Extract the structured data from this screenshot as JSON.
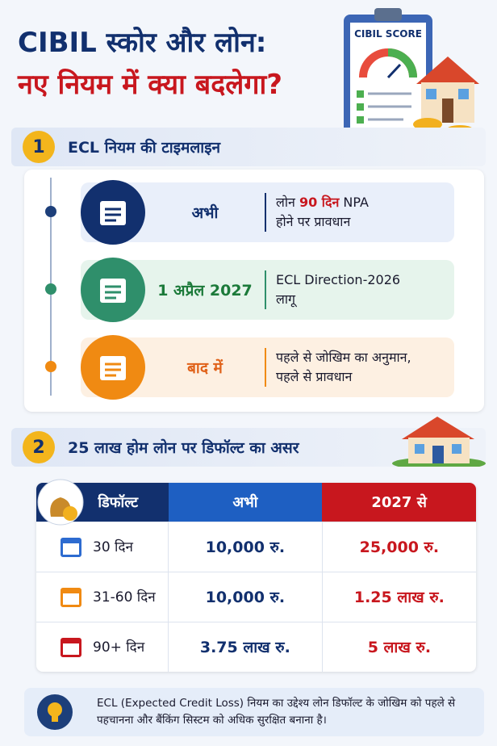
{
  "header": {
    "title_line1": "CIBIL स्कोर और लोन:",
    "title_line2": "नए नियम में क्या बदलेगा?",
    "badge": "CIBIL SCORE"
  },
  "section1": {
    "number": "1",
    "title": "ECL नियम की टाइमलाइन",
    "items": [
      {
        "label": "अभी",
        "lines": [
          [
            "लोन ",
            "90 दिन",
            " NPA"
          ],
          [
            "होने पर प्रावधान"
          ]
        ]
      },
      {
        "label": "1 अप्रैल 2027",
        "lines": [
          [
            "ECL Direction-2026"
          ],
          [
            "लागू"
          ]
        ]
      },
      {
        "label": "बाद में",
        "lines": [
          [
            "पहले से जोखिम का अनुमान,"
          ],
          [
            "पहले से प्रावधान"
          ]
        ]
      }
    ]
  },
  "section2": {
    "number": "2",
    "title": "25 लाख होम लोन पर डिफॉल्ट का असर",
    "table": {
      "columns": [
        "डिफॉल्ट",
        "अभी",
        "2027 से"
      ],
      "rows": [
        [
          "30 दिन",
          "10,000 रु.",
          "25,000 रु."
        ],
        [
          "31-60 दिन",
          "10,000 रु.",
          "1.25 लाख रु."
        ],
        [
          "90+ दिन",
          "3.75 लाख रु.",
          "5 लाख रु."
        ]
      ]
    }
  },
  "note": "ECL (Expected Credit Loss) नियम का उद्देश्य लोन डिफॉल्ट के जोखिम को पहले से पहचानना और बैंकिंग सिस्टम को अधिक सुरक्षित बनाना है।"
}
